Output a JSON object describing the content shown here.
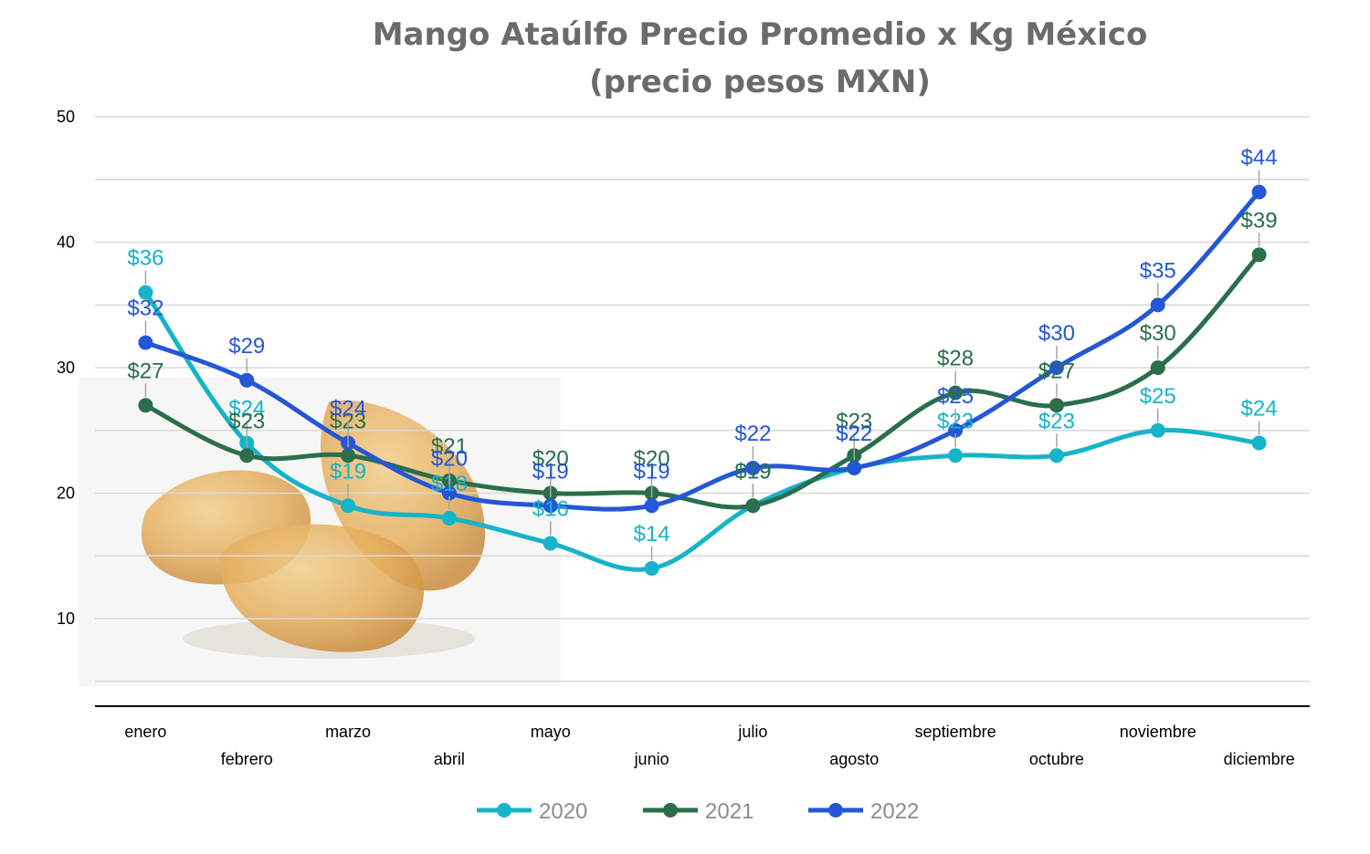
{
  "chart_data": {
    "type": "line",
    "title": "Mango Ataúlfo Precio Promedio x Kg México",
    "subtitle": "(precio pesos MXN)",
    "xlabel": "",
    "ylabel": "",
    "categories": [
      "enero",
      "febrero",
      "marzo",
      "abril",
      "mayo",
      "junio",
      "julio",
      "agosto",
      "septiembre",
      "octubre",
      "noviembre",
      "diciembre"
    ],
    "yticks": [
      10,
      20,
      30,
      40,
      50
    ],
    "ylim": [
      5,
      50
    ],
    "grid": true,
    "legend_position": "bottom",
    "series": [
      {
        "name": "2020",
        "color": "#17b3c9",
        "values": [
          36,
          24,
          19,
          18,
          16,
          14,
          19,
          22,
          23,
          23,
          25,
          24
        ],
        "labels": [
          "$36",
          "$24",
          "$19",
          "$18",
          "$16",
          "$14",
          "$19",
          "$22",
          "$23",
          "$23",
          "$25",
          "$24"
        ]
      },
      {
        "name": "2021",
        "color": "#2a6e4b",
        "values": [
          27,
          23,
          23,
          21,
          20,
          20,
          19,
          23,
          28,
          27,
          30,
          39
        ],
        "labels": [
          "$27",
          "$23",
          "$23",
          "$21",
          "$20",
          "$20",
          "$19",
          "$23",
          "$28",
          "$27",
          "$30",
          "$39"
        ]
      },
      {
        "name": "2022",
        "color": "#2457d6",
        "values": [
          32,
          29,
          24,
          20,
          19,
          19,
          22,
          22,
          25,
          30,
          35,
          44
        ],
        "labels": [
          "$32",
          "$29",
          "$24",
          "$20",
          "$19",
          "$19",
          "$22",
          "$22",
          "$25",
          "$30",
          "$35",
          "$44"
        ]
      }
    ],
    "decoration_icon": "mango-fruit-image"
  }
}
